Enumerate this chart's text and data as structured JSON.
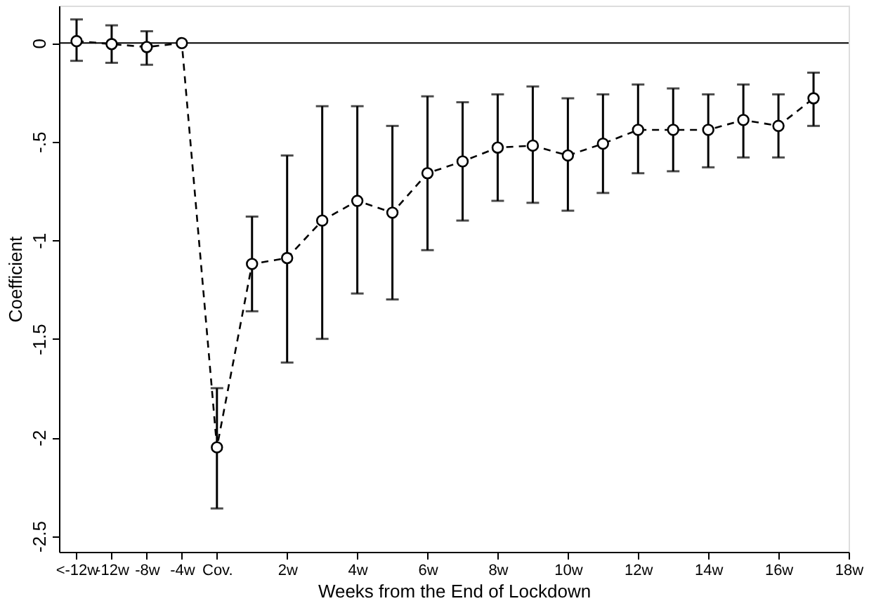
{
  "chart_data": {
    "type": "line",
    "xlabel": "Weeks from the End of Lockdown",
    "ylabel": "Coefficient",
    "categories": [
      "<-12w",
      "-12w",
      "-8w",
      "-4w",
      "Cov.",
      null,
      "2w",
      null,
      "4w",
      null,
      "6w",
      null,
      "8w",
      null,
      "10w",
      null,
      "12w",
      null,
      "14w",
      null,
      "16w",
      null,
      "18w"
    ],
    "series": [
      {
        "color": "#000000",
        "values": [
          0.01,
          -0.005,
          -0.02,
          0,
          -2.05,
          -1.12,
          -1.09,
          -0.9,
          -0.8,
          -0.86,
          -0.66,
          -0.6,
          -0.53,
          -0.52,
          -0.57,
          -0.51,
          -0.44,
          -0.44,
          -0.44,
          -0.39,
          -0.42,
          -0.28,
          null
        ],
        "errors": [
          [
            -0.09,
            0.12
          ],
          [
            -0.1,
            0.09
          ],
          [
            -0.11,
            0.06
          ],
          null,
          [
            -2.36,
            -1.75
          ],
          [
            -1.36,
            -0.88
          ],
          [
            -1.62,
            -0.57
          ],
          [
            -1.5,
            -0.32
          ],
          [
            -1.27,
            -0.32
          ],
          [
            -1.3,
            -0.42
          ],
          [
            -1.05,
            -0.27
          ],
          [
            -0.9,
            -0.3
          ],
          [
            -0.8,
            -0.26
          ],
          [
            -0.81,
            -0.22
          ],
          [
            -0.85,
            -0.28
          ],
          [
            -0.76,
            -0.26
          ],
          [
            -0.66,
            -0.21
          ],
          [
            -0.65,
            -0.23
          ],
          [
            -0.63,
            -0.26
          ],
          [
            -0.58,
            -0.21
          ],
          [
            -0.58,
            -0.26
          ],
          [
            -0.42,
            -0.15
          ],
          null
        ]
      }
    ],
    "ylim": [
      -2.58,
      0.19
    ],
    "yticks": [
      {
        "value": -2.5,
        "label": "-2.5"
      },
      {
        "value": -2,
        "label": "-2"
      },
      {
        "value": -1.5,
        "label": "-1.5"
      },
      {
        "value": -1,
        "label": "-1"
      },
      {
        "value": -0.5,
        "label": "-.5"
      },
      0
    ],
    "ref_lines": [
      {
        "axis": "y",
        "value": 0,
        "color": "#000000",
        "line_style": "solid"
      }
    ],
    "marker": "circle",
    "line_style": "dashed",
    "grid": false
  }
}
